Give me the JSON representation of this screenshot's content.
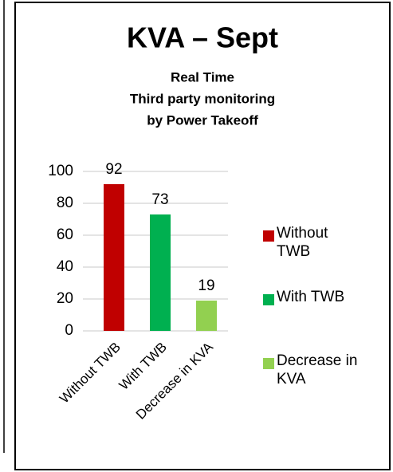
{
  "chart_data": {
    "type": "bar",
    "title": "KVA – Sept",
    "subtitle": [
      "Real Time",
      "Third party monitoring",
      "by Power Takeoff"
    ],
    "categories": [
      "Without TWB",
      "With TWB",
      "Decrease in KVA"
    ],
    "values": [
      92,
      73,
      19
    ],
    "colors": [
      "#c00000",
      "#00b050",
      "#92d050"
    ],
    "ylim": [
      0,
      100
    ],
    "yticks": [
      0,
      20,
      40,
      60,
      80,
      100
    ],
    "grid": true,
    "legend": "right"
  }
}
